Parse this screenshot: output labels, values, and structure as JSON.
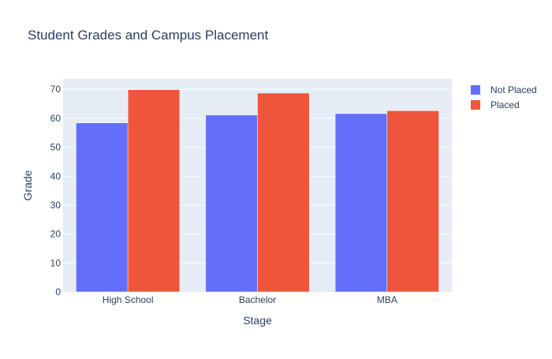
{
  "chart_data": {
    "type": "bar",
    "title": "Student Grades and Campus Placement",
    "xlabel": "Stage",
    "ylabel": "Grade",
    "categories": [
      "High School",
      "Bachelor",
      "MBA"
    ],
    "series": [
      {
        "name": "Not Placed",
        "color": "#636efa",
        "values": [
          58.4,
          61.1,
          61.6
        ]
      },
      {
        "name": "Placed",
        "color": "#ef553b",
        "values": [
          69.9,
          68.7,
          62.6
        ]
      }
    ],
    "ylim": [
      0,
      73.6
    ],
    "yticks": [
      0,
      10,
      20,
      30,
      40,
      50,
      60,
      70
    ],
    "grid": true,
    "legend_position": "top-right",
    "plot_background": "#e5ecf6"
  }
}
